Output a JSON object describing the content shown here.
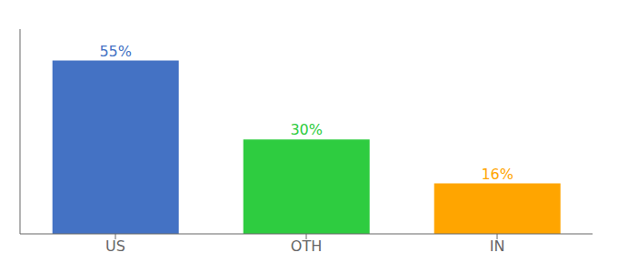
{
  "chart_data": {
    "type": "bar",
    "categories": [
      "US",
      "OTH",
      "IN"
    ],
    "values": [
      55,
      30,
      16
    ],
    "value_labels": [
      "55%",
      "30%",
      "16%"
    ],
    "colors": [
      "#4472C4",
      "#2ECC40",
      "#FFA500"
    ],
    "ylim": [
      0,
      65
    ],
    "grid": false,
    "data_labels": true,
    "tick_labels": "x"
  }
}
